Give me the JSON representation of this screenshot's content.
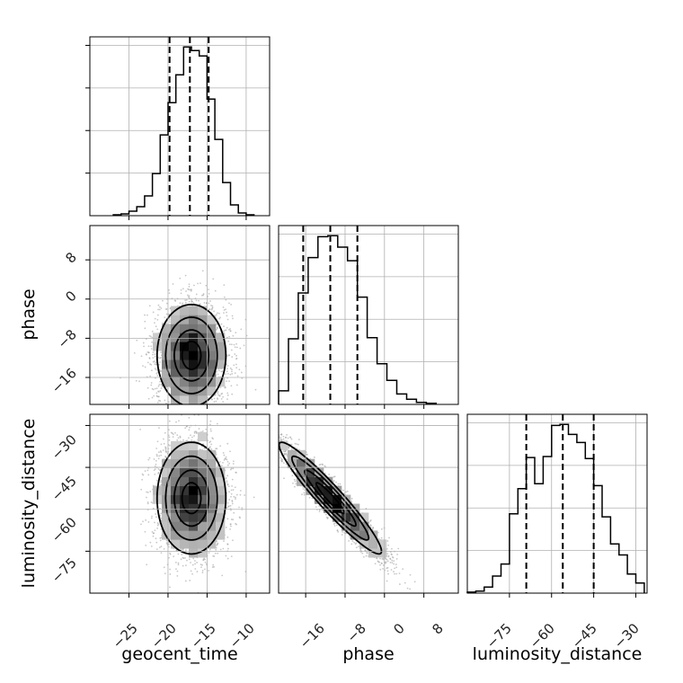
{
  "chart_data": {
    "type": "corner",
    "parameters": [
      "geocent_time",
      "phase",
      "luminosity_distance"
    ],
    "axis_labels": {
      "x": [
        "geocent_time",
        "phase",
        "luminosity_distance"
      ],
      "y": [
        "phase",
        "luminosity_distance"
      ]
    },
    "ticks": {
      "geocent_time": [
        "−25",
        "−20",
        "−15",
        "−10"
      ],
      "phase": [
        "−16",
        "−8",
        "0",
        "8"
      ],
      "luminosity_distance": [
        "−75",
        "−60",
        "−45",
        "−30"
      ]
    },
    "ranges": {
      "geocent_time": [
        -30,
        -7
      ],
      "phase": [
        -21.5,
        15
      ],
      "luminosity_distance": [
        -90,
        -26
      ]
    },
    "quantile_lines": {
      "geocent_time": [
        -19.8,
        -17.2,
        -14.8
      ],
      "phase": [
        -16.5,
        -11.0,
        -5.5
      ],
      "luminosity_distance": [
        -69,
        -56,
        -45
      ]
    },
    "histograms": {
      "geocent_time": {
        "bin_edges": [
          -27,
          -26,
          -25,
          -24,
          -23,
          -22,
          -21,
          -20,
          -19,
          -18,
          -17,
          -16,
          -15,
          -14,
          -13,
          -12,
          -11,
          -10,
          -9
        ],
        "counts": [
          1,
          2,
          5,
          10,
          22,
          47,
          90,
          126,
          157,
          188,
          184,
          178,
          130,
          85,
          37,
          12,
          3,
          1
        ]
      },
      "phase": {
        "bin_edges": [
          -21.5,
          -19.5,
          -17.5,
          -15.5,
          -13.5,
          -11.5,
          -9.5,
          -7.5,
          -5.5,
          -3.5,
          -1.5,
          0.5,
          2.5,
          4.5,
          6.5,
          8.5,
          10.5
        ],
        "counts": [
          13,
          63,
          107,
          141,
          161,
          162,
          151,
          138,
          103,
          64,
          39,
          23,
          10,
          5,
          2,
          1
        ]
      },
      "luminosity_distance": {
        "bin_edges": [
          -90,
          -87,
          -84,
          -81,
          -78,
          -75,
          -72,
          -69,
          -66,
          -63,
          -60,
          -57,
          -54,
          -51,
          -48,
          -45,
          -42,
          -39,
          -36,
          -33,
          -30,
          -27
        ],
        "counts": [
          1,
          2,
          6,
          17,
          29,
          79,
          104,
          135,
          109,
          136,
          167,
          168,
          158,
          150,
          134,
          107,
          76,
          49,
          38,
          19,
          10
        ]
      }
    },
    "scatter_2d": [
      {
        "x": "geocent_time",
        "y": "phase",
        "center": [
          -17,
          -11.5
        ],
        "sd": [
          2.2,
          5.2
        ],
        "rho": 0.0
      },
      {
        "x": "geocent_time",
        "y": "luminosity_distance",
        "center": [
          -17,
          -56
        ],
        "sd": [
          2.2,
          10
        ],
        "rho": 0.0
      },
      {
        "x": "phase",
        "y": "luminosity_distance",
        "center": [
          -11,
          -56
        ],
        "sd": [
          5.2,
          10
        ],
        "rho": -0.95
      }
    ],
    "grid": true
  }
}
